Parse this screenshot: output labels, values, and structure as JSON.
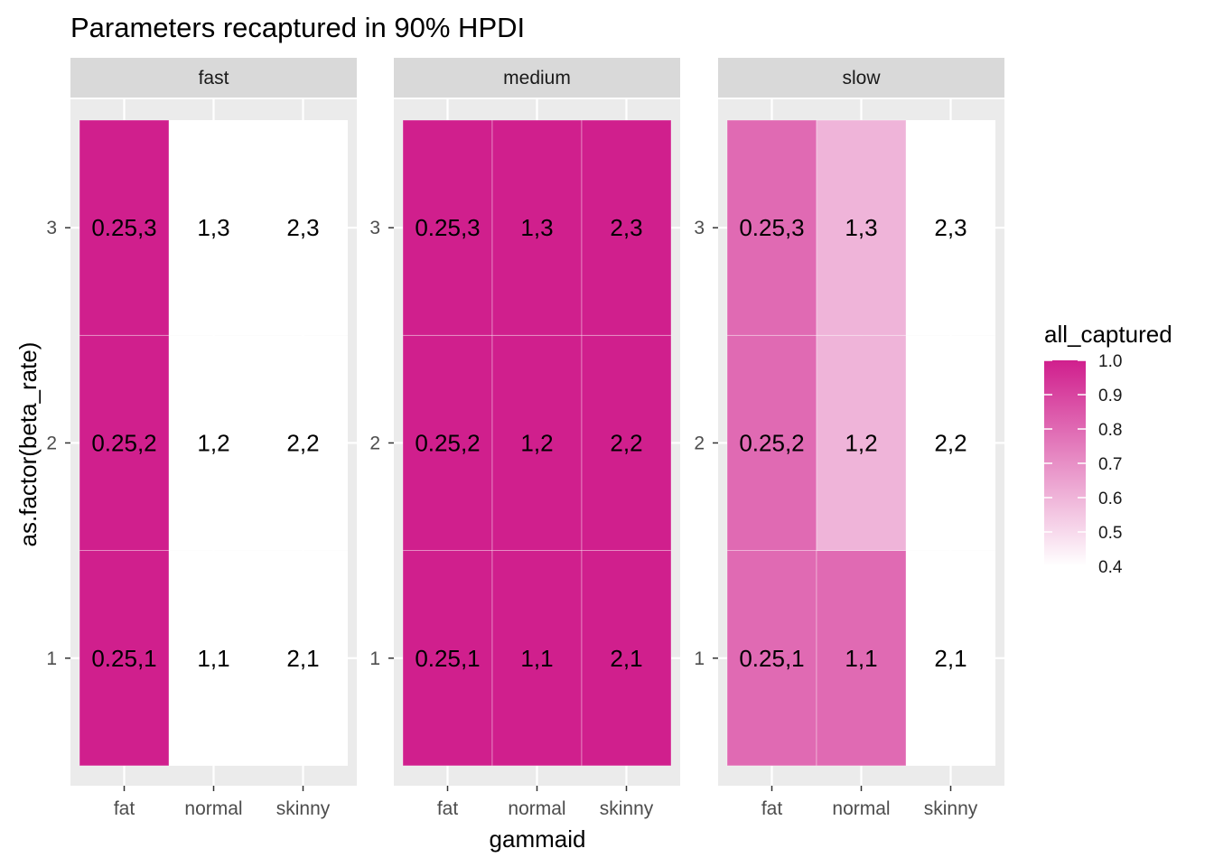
{
  "chart_data": {
    "type": "heatmap",
    "title": "Parameters recaptured in 90% HPDI",
    "xlabel": "gammaid",
    "ylabel": "as.factor(beta_rate)",
    "x_categories": [
      "fat",
      "normal",
      "skinny"
    ],
    "y_categories": [
      "1",
      "2",
      "3"
    ],
    "facets": [
      {
        "name": "fast",
        "cells": [
          {
            "x": "fat",
            "y": "1",
            "value": 1.0,
            "label": "0.25,1"
          },
          {
            "x": "fat",
            "y": "2",
            "value": 1.0,
            "label": "0.25,2"
          },
          {
            "x": "fat",
            "y": "3",
            "value": 1.0,
            "label": "0.25,3"
          },
          {
            "x": "normal",
            "y": "1",
            "value": null,
            "label": "1,1"
          },
          {
            "x": "normal",
            "y": "2",
            "value": null,
            "label": "1,2"
          },
          {
            "x": "normal",
            "y": "3",
            "value": null,
            "label": "1,3"
          },
          {
            "x": "skinny",
            "y": "1",
            "value": null,
            "label": "2,1"
          },
          {
            "x": "skinny",
            "y": "2",
            "value": null,
            "label": "2,2"
          },
          {
            "x": "skinny",
            "y": "3",
            "value": null,
            "label": "2,3"
          }
        ]
      },
      {
        "name": "medium",
        "cells": [
          {
            "x": "fat",
            "y": "1",
            "value": 1.0,
            "label": "0.25,1"
          },
          {
            "x": "fat",
            "y": "2",
            "value": 1.0,
            "label": "0.25,2"
          },
          {
            "x": "fat",
            "y": "3",
            "value": 1.0,
            "label": "0.25,3"
          },
          {
            "x": "normal",
            "y": "1",
            "value": 1.0,
            "label": "1,1"
          },
          {
            "x": "normal",
            "y": "2",
            "value": 1.0,
            "label": "1,2"
          },
          {
            "x": "normal",
            "y": "3",
            "value": 1.0,
            "label": "1,3"
          },
          {
            "x": "skinny",
            "y": "1",
            "value": 1.0,
            "label": "2,1"
          },
          {
            "x": "skinny",
            "y": "2",
            "value": 1.0,
            "label": "2,2"
          },
          {
            "x": "skinny",
            "y": "3",
            "value": 1.0,
            "label": "2,3"
          }
        ]
      },
      {
        "name": "slow",
        "cells": [
          {
            "x": "fat",
            "y": "1",
            "value": 0.8,
            "label": "0.25,1"
          },
          {
            "x": "fat",
            "y": "2",
            "value": 0.8,
            "label": "0.25,2"
          },
          {
            "x": "fat",
            "y": "3",
            "value": 0.8,
            "label": "0.25,3"
          },
          {
            "x": "normal",
            "y": "1",
            "value": 0.8,
            "label": "1,1"
          },
          {
            "x": "normal",
            "y": "2",
            "value": 0.6,
            "label": "1,2"
          },
          {
            "x": "normal",
            "y": "3",
            "value": 0.6,
            "label": "1,3"
          },
          {
            "x": "skinny",
            "y": "1",
            "value": null,
            "label": "2,1"
          },
          {
            "x": "skinny",
            "y": "2",
            "value": null,
            "label": "2,2"
          },
          {
            "x": "skinny",
            "y": "3",
            "value": null,
            "label": "2,3"
          }
        ]
      }
    ],
    "legend": {
      "title": "all_captured",
      "min": 0.4,
      "max": 1.0,
      "ticks": [
        "1.0",
        "0.9",
        "0.8",
        "0.7",
        "0.6",
        "0.5",
        "0.4"
      ],
      "low_color": "#ffffff",
      "high_color": "#d01f8d",
      "position": "right"
    },
    "panel_background": "#ebebeb",
    "strip_background": "#d9d9d9",
    "grid": true
  }
}
